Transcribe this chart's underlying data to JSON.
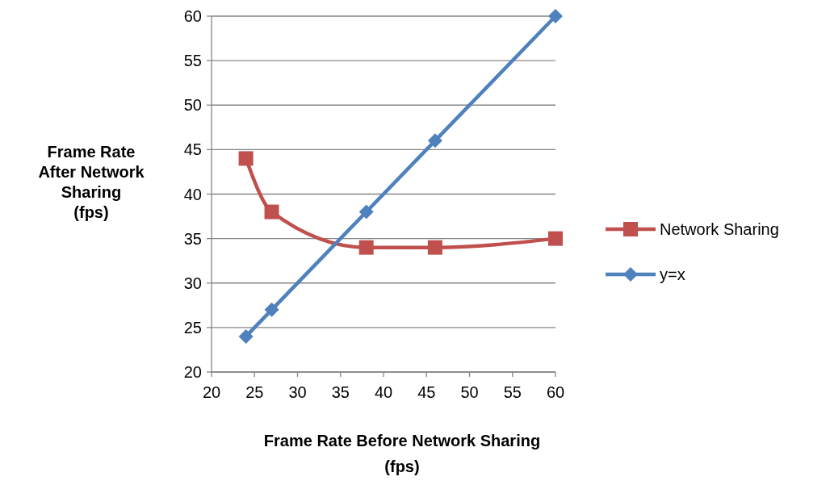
{
  "chart_data": {
    "type": "line",
    "xlabel": "Frame Rate Before Network Sharing (fps)",
    "ylabel": "Frame Rate After Network Sharing (fps)",
    "xlim": [
      20,
      60
    ],
    "xticks": [
      20,
      25,
      30,
      35,
      40,
      45,
      50,
      55,
      60
    ],
    "ylim": [
      20,
      60
    ],
    "yticks": [
      20,
      25,
      30,
      35,
      40,
      45,
      50,
      55,
      60
    ],
    "grid": "y",
    "legend": "right",
    "series": [
      {
        "name": "Network Sharing",
        "color": "#c0504d",
        "marker": "square",
        "x": [
          24,
          27,
          38,
          46,
          60
        ],
        "values": [
          44,
          38,
          34,
          34,
          35
        ]
      },
      {
        "name": "y=x",
        "color": "#4f81bd",
        "marker": "diamond",
        "x": [
          24,
          27,
          38,
          46,
          60
        ],
        "values": [
          24,
          27,
          38,
          46,
          60
        ]
      }
    ]
  }
}
